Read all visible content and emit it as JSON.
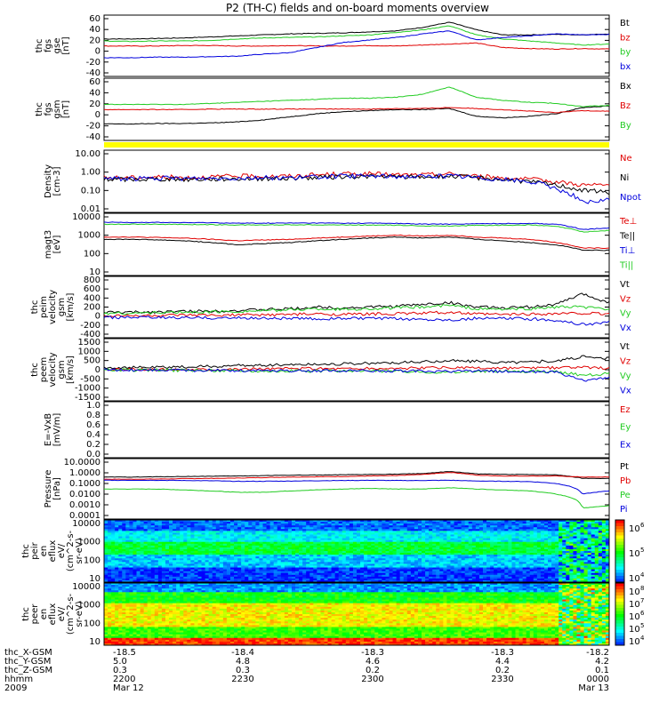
{
  "title": "P2 (TH-C) fields and on-board moments overview",
  "colors": {
    "black": "#000000",
    "red": "#e00000",
    "green": "#22cc22",
    "blue": "#0000dd",
    "yellow": "#ffff00"
  },
  "chart_data": [
    {
      "type": "line",
      "panel": "fgs_gse",
      "ylabel": [
        "thc",
        "fgs",
        "gse",
        "[nT]"
      ],
      "ytick_labels": [
        "60",
        "40",
        "20",
        "0",
        "-20",
        "-40"
      ],
      "ylim": [
        -45,
        62
      ],
      "series": [
        {
          "name": "Bt",
          "color": "black",
          "values": [
            22,
            22,
            23,
            24,
            26,
            28,
            30,
            32,
            33,
            34,
            36,
            38,
            45,
            55,
            40,
            30,
            30,
            31,
            30,
            32
          ]
        },
        {
          "name": "bz",
          "color": "red",
          "values": [
            8,
            8,
            8,
            9,
            9,
            8,
            8,
            9,
            8,
            8,
            9,
            8,
            10,
            12,
            14,
            5,
            3,
            2,
            3,
            2
          ]
        },
        {
          "name": "by",
          "color": "green",
          "values": [
            18,
            17,
            18,
            18,
            19,
            22,
            24,
            25,
            26,
            28,
            30,
            35,
            40,
            48,
            30,
            22,
            18,
            14,
            10,
            12
          ]
        },
        {
          "name": "bx",
          "color": "blue",
          "values": [
            -15,
            -15,
            -14,
            -14,
            -13,
            -12,
            -8,
            -5,
            5,
            15,
            20,
            25,
            32,
            38,
            20,
            25,
            28,
            32,
            30,
            31
          ]
        }
      ]
    },
    {
      "type": "line",
      "panel": "fgs_gsm",
      "ylabel": [
        "thc",
        "fgs",
        "gsm",
        "[nT]"
      ],
      "ytick_labels": [
        "60",
        "40",
        "20",
        "0",
        "-20",
        "-40"
      ],
      "ylim": [
        -45,
        62
      ],
      "series": [
        {
          "name": "Bx",
          "color": "black",
          "values": [
            -20,
            -20,
            -19,
            -19,
            -18,
            -16,
            -12,
            -6,
            0,
            4,
            6,
            8,
            8,
            10,
            -5,
            -8,
            -5,
            0,
            12,
            15
          ]
        },
        {
          "name": "Bz",
          "color": "red",
          "values": [
            8,
            8,
            8,
            8,
            9,
            9,
            9,
            9,
            9,
            9,
            9,
            10,
            10,
            12,
            10,
            8,
            5,
            2,
            6,
            5
          ]
        },
        {
          "name": "By",
          "color": "green",
          "values": [
            18,
            18,
            18,
            18,
            20,
            22,
            24,
            26,
            28,
            30,
            30,
            32,
            38,
            52,
            32,
            26,
            22,
            20,
            14,
            16
          ]
        }
      ]
    },
    {
      "type": "line",
      "panel": "density",
      "ylabel": [
        "Density",
        "[cm-3]"
      ],
      "ytick_labels": [
        "10.00",
        "1.00",
        "0.10",
        "0.01"
      ],
      "scale": "log",
      "ylim": [
        0.01,
        10
      ],
      "series": [
        {
          "name": "Ne",
          "color": "red",
          "values": [
            0.5,
            0.5,
            0.55,
            0.5,
            0.55,
            0.6,
            0.6,
            0.6,
            0.7,
            0.8,
            0.8,
            0.7,
            0.7,
            0.8,
            0.6,
            0.5,
            0.4,
            0.3,
            0.2,
            0.2
          ]
        },
        {
          "name": "Ni",
          "color": "black",
          "values": [
            0.4,
            0.4,
            0.42,
            0.4,
            0.42,
            0.44,
            0.45,
            0.46,
            0.5,
            0.55,
            0.6,
            0.55,
            0.55,
            0.6,
            0.5,
            0.4,
            0.3,
            0.2,
            0.1,
            0.08
          ]
        },
        {
          "name": "Npot",
          "color": "blue",
          "values": [
            0.45,
            0.45,
            0.46,
            0.45,
            0.46,
            0.48,
            0.5,
            0.5,
            0.55,
            0.6,
            0.62,
            0.58,
            0.58,
            0.62,
            0.5,
            0.4,
            0.3,
            0.12,
            0.02,
            0.03
          ]
        }
      ]
    },
    {
      "type": "line",
      "panel": "temperature",
      "ylabel": [
        "magt3",
        "[eV]"
      ],
      "ytick_labels": [
        "10000",
        "1000",
        "100",
        "10"
      ],
      "scale": "log",
      "ylim": [
        10,
        10000
      ],
      "series": [
        {
          "name": "Te⊥",
          "color": "red",
          "values": [
            800,
            800,
            750,
            700,
            600,
            500,
            550,
            600,
            700,
            800,
            900,
            1000,
            900,
            1000,
            800,
            700,
            600,
            400,
            200,
            200
          ]
        },
        {
          "name": "Te||",
          "color": "black",
          "values": [
            600,
            600,
            560,
            500,
            400,
            300,
            350,
            400,
            500,
            600,
            700,
            800,
            700,
            800,
            600,
            500,
            400,
            300,
            150,
            150
          ]
        },
        {
          "name": "Ti⊥",
          "color": "blue",
          "values": [
            5000,
            5000,
            5000,
            4800,
            4800,
            4500,
            4500,
            4600,
            4600,
            4500,
            4500,
            4400,
            4000,
            4000,
            4200,
            4300,
            4400,
            4000,
            2000,
            2500
          ]
        },
        {
          "name": "Ti||",
          "color": "green",
          "values": [
            4000,
            4000,
            4000,
            3800,
            3800,
            3600,
            3600,
            3700,
            3700,
            3600,
            3600,
            3500,
            3200,
            3200,
            3400,
            3500,
            3600,
            3000,
            1500,
            1800
          ]
        }
      ]
    },
    {
      "type": "line",
      "panel": "ion_velocity",
      "ylabel": [
        "thc",
        "peim",
        "velocity",
        "gsm",
        "[km/s]"
      ],
      "ytick_labels": [
        "800",
        "600",
        "400",
        "200",
        "0",
        "-200",
        "-400"
      ],
      "ylim": [
        -420,
        820
      ],
      "series": [
        {
          "name": "Vt",
          "color": "black",
          "values": [
            80,
            80,
            90,
            100,
            110,
            120,
            140,
            160,
            200,
            180,
            200,
            220,
            260,
            300,
            200,
            180,
            200,
            260,
            500,
            300
          ]
        },
        {
          "name": "Vz",
          "color": "red",
          "values": [
            0,
            0,
            5,
            10,
            10,
            20,
            20,
            30,
            40,
            30,
            40,
            50,
            60,
            80,
            40,
            30,
            40,
            50,
            60,
            40
          ]
        },
        {
          "name": "Vy",
          "color": "green",
          "values": [
            60,
            60,
            70,
            80,
            90,
            100,
            120,
            140,
            160,
            150,
            160,
            180,
            200,
            240,
            160,
            150,
            160,
            200,
            200,
            150
          ]
        },
        {
          "name": "Vx",
          "color": "blue",
          "values": [
            -40,
            -40,
            -40,
            -45,
            -50,
            -50,
            -55,
            -60,
            -70,
            -60,
            -60,
            -70,
            -80,
            -90,
            -60,
            -60,
            -70,
            -100,
            -200,
            -150
          ]
        }
      ]
    },
    {
      "type": "line",
      "panel": "electron_velocity",
      "ylabel": [
        "thc",
        "peem",
        "velocity",
        "gsm",
        "[km/s]"
      ],
      "ytick_labels": [
        "1500",
        "1000",
        "500",
        "0",
        "-500",
        "-1000",
        "-1500"
      ],
      "ylim": [
        -1500,
        1500
      ],
      "series": [
        {
          "name": "Vt",
          "color": "black",
          "values": [
            120,
            120,
            130,
            150,
            180,
            220,
            250,
            280,
            300,
            320,
            350,
            380,
            420,
            500,
            450,
            400,
            420,
            480,
            700,
            600
          ]
        },
        {
          "name": "Vz",
          "color": "red",
          "values": [
            0,
            10,
            10,
            20,
            30,
            40,
            50,
            60,
            70,
            60,
            60,
            70,
            90,
            120,
            80,
            70,
            80,
            100,
            120,
            100
          ]
        },
        {
          "name": "Vy",
          "color": "green",
          "values": [
            -20,
            -20,
            -20,
            -30,
            -40,
            -50,
            -60,
            -70,
            -80,
            -70,
            -70,
            -80,
            -100,
            -140,
            -90,
            -80,
            -90,
            -120,
            -300,
            -200
          ]
        },
        {
          "name": "Vx",
          "color": "blue",
          "values": [
            -20,
            -20,
            -30,
            -30,
            -40,
            -50,
            -50,
            -60,
            -60,
            -60,
            -60,
            -70,
            -80,
            -100,
            -80,
            -80,
            -90,
            -150,
            -600,
            -400
          ]
        }
      ]
    },
    {
      "type": "line",
      "panel": "efield",
      "ylabel": [
        "E=-VxB",
        "[mV/m]"
      ],
      "ytick_labels": [
        "1.0",
        "0.8",
        "0.6",
        "0.4",
        "0.2",
        "0.0"
      ],
      "ylim": [
        0,
        1
      ],
      "series": [
        {
          "name": "Ez",
          "color": "red",
          "values": []
        },
        {
          "name": "Ey",
          "color": "green",
          "values": []
        },
        {
          "name": "Ex",
          "color": "blue",
          "values": []
        }
      ]
    },
    {
      "type": "line",
      "panel": "pressure",
      "ylabel": [
        "Pressure",
        "[nPa]"
      ],
      "ytick_labels": [
        "10.0000",
        "1.0000",
        "0.1000",
        "0.0100",
        "0.0010",
        "0.0001"
      ],
      "scale": "log",
      "ylim": [
        0.0001,
        10
      ],
      "series": [
        {
          "name": "Pt",
          "color": "black",
          "values": [
            0.4,
            0.4,
            0.42,
            0.45,
            0.48,
            0.5,
            0.55,
            0.6,
            0.62,
            0.65,
            0.7,
            0.75,
            0.85,
            1.3,
            0.8,
            0.7,
            0.7,
            0.65,
            0.3,
            0.3
          ]
        },
        {
          "name": "Pb",
          "color": "red",
          "values": [
            0.25,
            0.25,
            0.26,
            0.28,
            0.3,
            0.32,
            0.36,
            0.4,
            0.42,
            0.45,
            0.5,
            0.55,
            0.7,
            1.1,
            0.6,
            0.5,
            0.5,
            0.5,
            0.4,
            0.4
          ]
        },
        {
          "name": "Pe",
          "color": "green",
          "values": [
            0.03,
            0.03,
            0.03,
            0.025,
            0.02,
            0.015,
            0.015,
            0.02,
            0.025,
            0.03,
            0.035,
            0.03,
            0.03,
            0.04,
            0.03,
            0.025,
            0.02,
            0.01,
            0.0005,
            0.0008
          ]
        },
        {
          "name": "Pi",
          "color": "blue",
          "values": [
            0.2,
            0.2,
            0.2,
            0.19,
            0.18,
            0.16,
            0.16,
            0.17,
            0.18,
            0.19,
            0.2,
            0.19,
            0.19,
            0.2,
            0.17,
            0.16,
            0.15,
            0.1,
            0.01,
            0.02
          ]
        }
      ]
    },
    {
      "type": "heatmap",
      "panel": "peir_en_eflux",
      "ylabel": [
        "thc",
        "peir",
        "en",
        "eflux",
        "eV/",
        "(cm^2-s-",
        "sr-eV)"
      ],
      "ytick_labels": [
        "10000",
        "1000",
        "100",
        "10"
      ],
      "scale": "log",
      "ylim": [
        10,
        10000
      ],
      "colorbar_labels": [
        "10",
        "10",
        "10"
      ],
      "colorbar_exponents": [
        "6",
        "5",
        "4"
      ]
    },
    {
      "type": "heatmap",
      "panel": "peer_en_eflux",
      "ylabel": [
        "thc",
        "peer",
        "en",
        "eflux",
        "eV/",
        "(cm^2-s-",
        "sr-eV)"
      ],
      "ytick_labels": [
        "10000",
        "1000",
        "100",
        "10"
      ],
      "scale": "log",
      "ylim": [
        10,
        10000
      ],
      "colorbar_labels": [
        "10",
        "10",
        "10",
        "10",
        "10"
      ],
      "colorbar_exponents": [
        "8",
        "7",
        "6",
        "5",
        "4"
      ]
    }
  ],
  "xaxis": {
    "rows": [
      {
        "label": "thc_X-GSM",
        "values": [
          "-18.5",
          "-18.4",
          "-18.3",
          "-18.3",
          "-18.2"
        ]
      },
      {
        "label": "thc_Y-GSM",
        "values": [
          "5.0",
          "4.8",
          "4.6",
          "4.4",
          "4.2"
        ]
      },
      {
        "label": "thc_Z-GSM",
        "values": [
          "0.3",
          "0.3",
          "0.2",
          "0.2",
          "0.1"
        ]
      },
      {
        "label": "hhmm",
        "values": [
          "2200",
          "2230",
          "2300",
          "2330",
          "0000"
        ]
      },
      {
        "label": "2009",
        "values": [
          "Mar 12",
          "",
          "",
          "",
          "Mar 13"
        ]
      }
    ]
  }
}
